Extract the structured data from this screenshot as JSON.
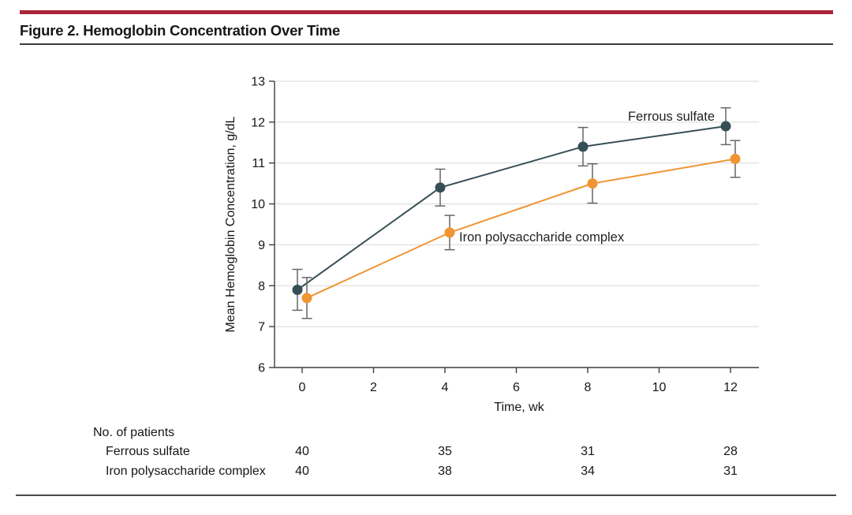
{
  "figure": {
    "title": "Figure 2. Hemoglobin Concentration Over Time",
    "accent_color": "#A8253A"
  },
  "chart_data": {
    "type": "line",
    "xlabel": "Time, wk",
    "ylabel": "Mean Hemoglobin Concentration, g/dL",
    "x": [
      0,
      4,
      8,
      12
    ],
    "xticks": [
      0,
      2,
      4,
      6,
      8,
      10,
      12
    ],
    "yticks": [
      6,
      7,
      8,
      9,
      10,
      11,
      12,
      13
    ],
    "xlim": [
      -0.8,
      12.8
    ],
    "ylim": [
      6,
      13
    ],
    "grid": "horizontal",
    "error_bar_color": "#666666",
    "axis_color": "#3f3f3f",
    "grid_color": "#d9d9d9",
    "series": [
      {
        "name": "Ferrous sulfate",
        "color": "#374E55",
        "values": [
          7.9,
          10.4,
          11.4,
          11.9
        ],
        "errors": [
          0.5,
          0.45,
          0.47,
          0.45
        ]
      },
      {
        "name": "Iron polysaccharide complex",
        "color": "#EF9532",
        "values": [
          7.7,
          9.3,
          10.5,
          11.1
        ],
        "errors": [
          0.5,
          0.42,
          0.48,
          0.45
        ]
      }
    ]
  },
  "patients_table": {
    "header": "No. of patients",
    "columns": [
      "0",
      "4",
      "8",
      "12"
    ],
    "rows": [
      {
        "label": "Ferrous sulfate",
        "values": [
          "40",
          "35",
          "31",
          "28"
        ]
      },
      {
        "label": "Iron polysaccharide complex",
        "values": [
          "40",
          "38",
          "34",
          "31"
        ]
      }
    ]
  }
}
